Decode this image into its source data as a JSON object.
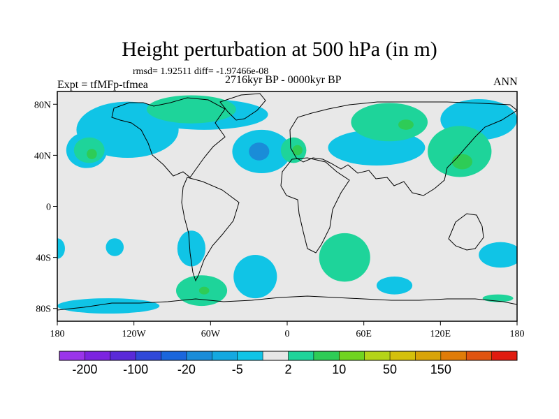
{
  "title": "Height perturbation at 500 hPa (in m)",
  "stats_line": "rmsd= 1.92511 diff= -1.97466e-08",
  "period_line": "2716kyr BP - 0000kyr BP",
  "experiment_label": "Expt = tfMFp-tfmea",
  "season_label": "ANN",
  "map": {
    "projection": "cylindrical-equidistant",
    "lon_range": [
      -180,
      180
    ],
    "lat_range": [
      -90,
      90
    ],
    "lat_ticks": [
      {
        "lat": 80,
        "label": "80N"
      },
      {
        "lat": 40,
        "label": "40N"
      },
      {
        "lat": 0,
        "label": "0"
      },
      {
        "lat": -40,
        "label": "40S"
      },
      {
        "lat": -80,
        "label": "80S"
      }
    ],
    "lon_ticks": [
      {
        "lon": -180,
        "label": "180"
      },
      {
        "lon": -120,
        "label": "120W"
      },
      {
        "lon": -60,
        "label": "60W"
      },
      {
        "lon": 0,
        "label": "0"
      },
      {
        "lon": 60,
        "label": "60E"
      },
      {
        "lon": 120,
        "label": "120E"
      },
      {
        "lon": 180,
        "label": "180"
      }
    ],
    "background_color": "#e8e8e8",
    "coastline_color": "#000000"
  },
  "colorbar": {
    "colors": [
      "#9a34ea",
      "#7c24e0",
      "#5a2ad8",
      "#3048d8",
      "#1a66dc",
      "#1a8cd8",
      "#14a8e0",
      "#10c4e6",
      "#e6e6e6",
      "#1ed49a",
      "#2ecc56",
      "#70d420",
      "#b4d418",
      "#d4c00c",
      "#d8a408",
      "#e07c08",
      "#e05410",
      "#e01c10"
    ],
    "labels": [
      {
        "value": "-200",
        "boundary": 1
      },
      {
        "value": "-100",
        "boundary": 3
      },
      {
        "value": "-20",
        "boundary": 5
      },
      {
        "value": "-5",
        "boundary": 7
      },
      {
        "value": "2",
        "boundary": 9
      },
      {
        "value": "10",
        "boundary": 11
      },
      {
        "value": "50",
        "boundary": 13
      },
      {
        "value": "150",
        "boundary": 15
      }
    ]
  },
  "anomaly_regions": [
    {
      "level": "-5",
      "color": "#10c4e6",
      "lon": -157,
      "lat": 44,
      "rlon": 16,
      "rlat": 14
    },
    {
      "level": "-5",
      "color": "#10c4e6",
      "lon": -125,
      "lat": 60,
      "rlon": 40,
      "rlat": 22
    },
    {
      "level": "-5",
      "color": "#10c4e6",
      "lon": -65,
      "lat": 72,
      "rlon": 50,
      "rlat": 12
    },
    {
      "level": "-5",
      "color": "#10c4e6",
      "lon": -20,
      "lat": 43,
      "rlon": 23,
      "rlat": 17
    },
    {
      "level": "-20",
      "color": "#1a8cd8",
      "lon": -22,
      "lat": 43,
      "rlon": 8,
      "rlat": 7
    },
    {
      "level": "-5",
      "color": "#10c4e6",
      "lon": -135,
      "lat": -32,
      "rlon": 7,
      "rlat": 7
    },
    {
      "level": "-5",
      "color": "#10c4e6",
      "lon": -75,
      "lat": -33,
      "rlon": 11,
      "rlat": 14
    },
    {
      "level": "-5",
      "color": "#10c4e6",
      "lon": -25,
      "lat": -55,
      "rlon": 17,
      "rlat": 17
    },
    {
      "level": "-5",
      "color": "#10c4e6",
      "lon": 70,
      "lat": 46,
      "rlon": 38,
      "rlat": 14
    },
    {
      "level": "-5",
      "color": "#10c4e6",
      "lon": 150,
      "lat": 68,
      "rlon": 30,
      "rlat": 16
    },
    {
      "level": "-5",
      "color": "#10c4e6",
      "lon": 84,
      "lat": -62,
      "rlon": 14,
      "rlat": 7
    },
    {
      "level": "-5",
      "color": "#10c4e6",
      "lon": 167,
      "lat": -38,
      "rlon": 17,
      "rlat": 10
    },
    {
      "level": "-5",
      "color": "#10c4e6",
      "lon": -180,
      "lat": -33,
      "rlon": 6,
      "rlat": 8
    },
    {
      "level": "-5",
      "color": "#10c4e6",
      "lon": -140,
      "lat": -78,
      "rlon": 40,
      "rlat": 6
    },
    {
      "level": "2",
      "color": "#1ed49a",
      "lon": -155,
      "lat": 44,
      "rlon": 12,
      "rlat": 10
    },
    {
      "level": "2",
      "color": "#1ed49a",
      "lon": -75,
      "lat": 76,
      "rlon": 35,
      "rlat": 11
    },
    {
      "level": "2",
      "color": "#1ed49a",
      "lon": 5,
      "lat": 44,
      "rlon": 10,
      "rlat": 10
    },
    {
      "level": "2",
      "color": "#1ed49a",
      "lon": 80,
      "lat": 66,
      "rlon": 30,
      "rlat": 15
    },
    {
      "level": "2",
      "color": "#1ed49a",
      "lon": 135,
      "lat": 43,
      "rlon": 25,
      "rlat": 20
    },
    {
      "level": "2",
      "color": "#1ed49a",
      "lon": -67,
      "lat": -66,
      "rlon": 20,
      "rlat": 12
    },
    {
      "level": "2",
      "color": "#1ed49a",
      "lon": 45,
      "lat": -40,
      "rlon": 20,
      "rlat": 19
    },
    {
      "level": "2",
      "color": "#1ed49a",
      "lon": 165,
      "lat": -72,
      "rlon": 12,
      "rlat": 3
    },
    {
      "level": "10",
      "color": "#2ecc56",
      "lon": -153,
      "lat": 41,
      "rlon": 4,
      "rlat": 4
    },
    {
      "level": "10",
      "color": "#2ecc56",
      "lon": 93,
      "lat": 64,
      "rlon": 6,
      "rlat": 4
    },
    {
      "level": "10",
      "color": "#2ecc56",
      "lon": 8,
      "lat": 44,
      "rlon": 4,
      "rlat": 4
    },
    {
      "level": "10",
      "color": "#2ecc56",
      "lon": 137,
      "lat": 35,
      "rlon": 8,
      "rlat": 6
    },
    {
      "level": "10",
      "color": "#2ecc56",
      "lon": -65,
      "lat": -66,
      "rlon": 4,
      "rlat": 3
    }
  ]
}
